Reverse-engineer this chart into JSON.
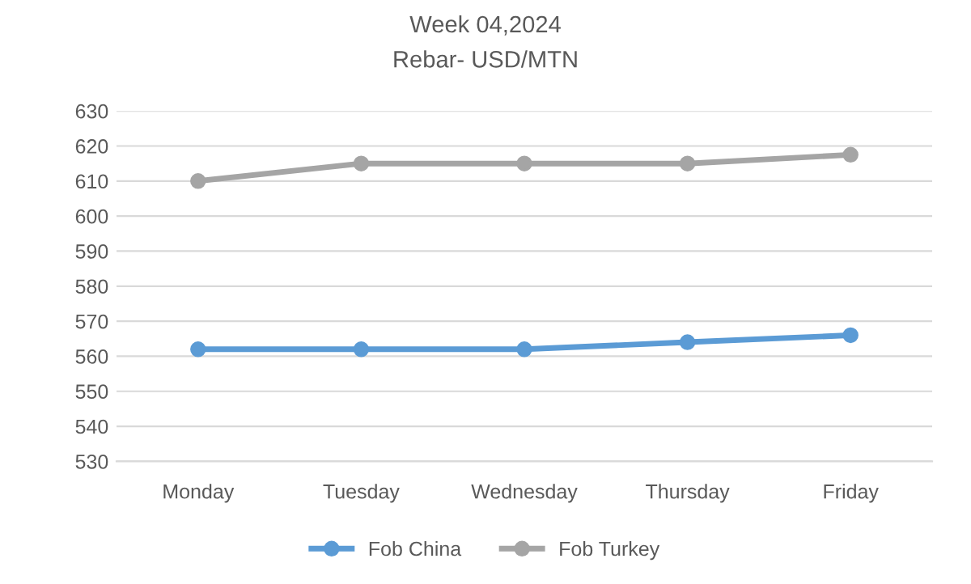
{
  "chart_data": {
    "type": "line",
    "title": "Week 04,2024",
    "subtitle": "Rebar- USD/MTN",
    "categories": [
      "Monday",
      "Tuesday",
      "Wednesday",
      "Thursday",
      "Friday"
    ],
    "series": [
      {
        "name": "Fob China",
        "color": "#5b9bd5",
        "values": [
          562,
          562,
          562,
          564,
          566
        ]
      },
      {
        "name": "Fob Turkey",
        "color": "#a5a5a5",
        "values": [
          610,
          615,
          615,
          615,
          617.5
        ]
      }
    ],
    "ylim": [
      530,
      630
    ],
    "yticks": [
      530,
      540,
      550,
      560,
      570,
      580,
      590,
      600,
      610,
      620,
      630
    ],
    "grid": "y",
    "legend": "bottom",
    "marker": "circle",
    "line_style": "solid"
  }
}
